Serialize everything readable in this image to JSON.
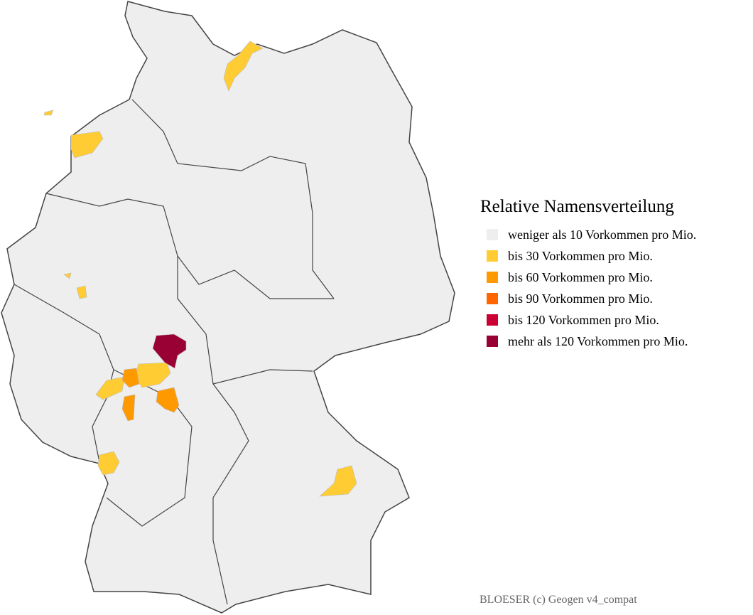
{
  "legend": {
    "title": "Relative Namensverteilung",
    "items": [
      {
        "label": "weniger als 10 Vorkommen pro Mio.",
        "color": "#eeeeee"
      },
      {
        "label": "bis 30 Vorkommen pro Mio.",
        "color": "#ffcc33"
      },
      {
        "label": "bis 60 Vorkommen pro Mio.",
        "color": "#ff9900"
      },
      {
        "label": "bis 90 Vorkommen pro Mio.",
        "color": "#ff6600"
      },
      {
        "label": "bis 120 Vorkommen pro Mio.",
        "color": "#cc0033"
      },
      {
        "label": "mehr als 120 Vorkommen pro Mio.",
        "color": "#990033"
      }
    ]
  },
  "credit": "BLOESER (c) Geogen v4_compat"
}
